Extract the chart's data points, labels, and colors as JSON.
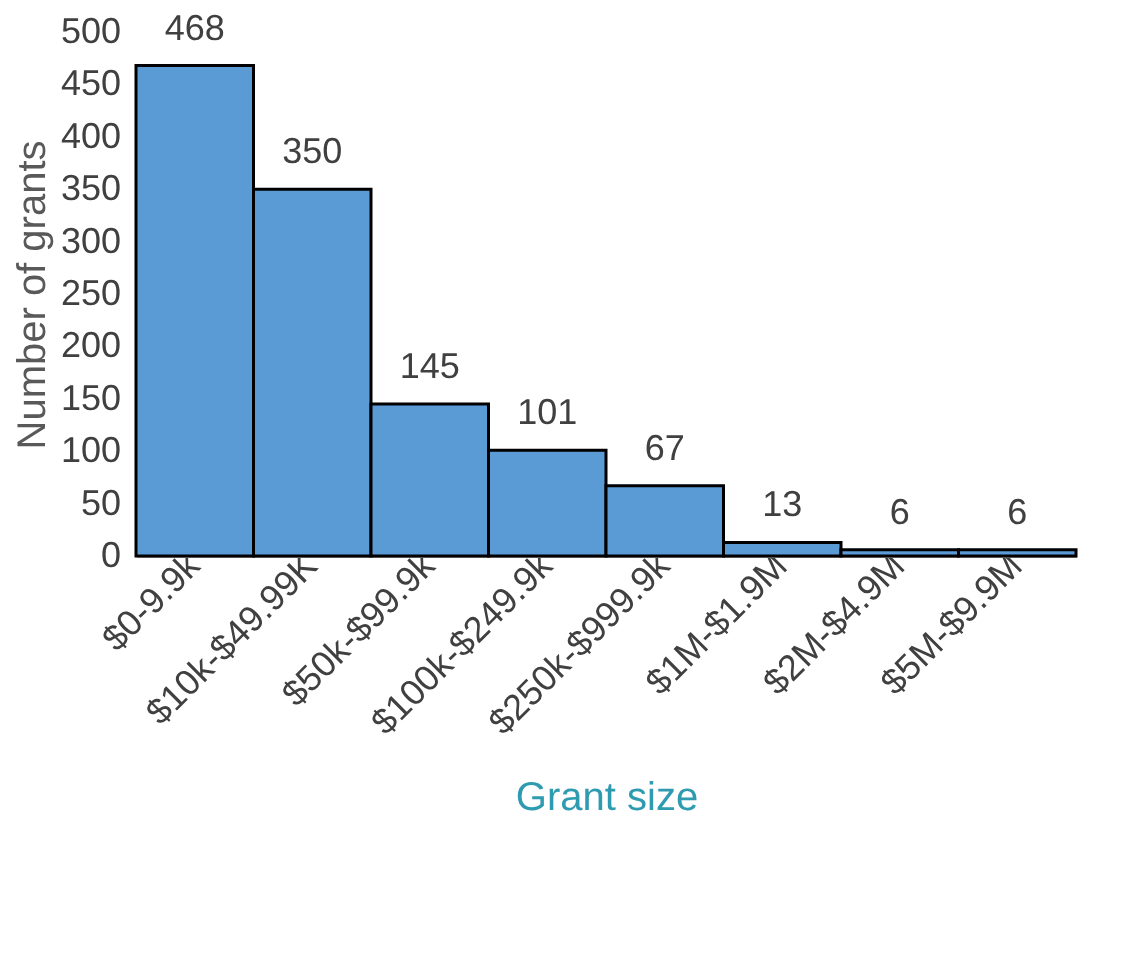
{
  "chart_data": {
    "type": "bar",
    "xlabel": "Grant size",
    "ylabel": "Number of grants",
    "categories": [
      "$0-9.9k",
      "$10k-$49.99K",
      "$50k-$99.9k",
      "$100k-$249.9k",
      "$250k-$999.9k",
      "$1M-$1.9M",
      "$2M-$4.9M",
      "$5M-$9.9M"
    ],
    "values": [
      468,
      350,
      145,
      101,
      67,
      13,
      6,
      6
    ],
    "color": "#5b9bd5",
    "ylim": [
      0,
      500
    ],
    "yticks": [
      0,
      50,
      100,
      150,
      200,
      250,
      300,
      350,
      400,
      450,
      500
    ],
    "data_labels": true,
    "grid": false
  }
}
